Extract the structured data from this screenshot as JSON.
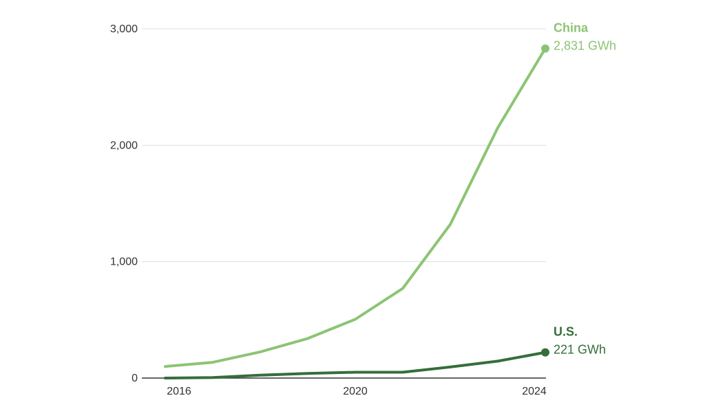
{
  "chart_data": {
    "type": "line",
    "x": [
      2016,
      2017,
      2018,
      2019,
      2020,
      2021,
      2022,
      2023,
      2024
    ],
    "xticks": [
      "2016",
      "2020",
      "2024"
    ],
    "ylim": [
      0,
      3000
    ],
    "yticks": [
      {
        "value": 0,
        "label": "0"
      },
      {
        "value": 1000,
        "label": "1,000"
      },
      {
        "value": 2000,
        "label": "2,000"
      },
      {
        "value": 3000,
        "label": "3,000"
      }
    ],
    "grid": true,
    "series": [
      {
        "name": "China",
        "value_label": "2,831 GWh",
        "color": "#8cc474",
        "values": [
          100,
          135,
          225,
          340,
          505,
          770,
          1320,
          2150,
          2831
        ]
      },
      {
        "name": "U.S.",
        "value_label": "221 GWh",
        "color": "#356e3b",
        "values": [
          0,
          5,
          25,
          40,
          50,
          50,
          95,
          145,
          221
        ]
      }
    ]
  }
}
